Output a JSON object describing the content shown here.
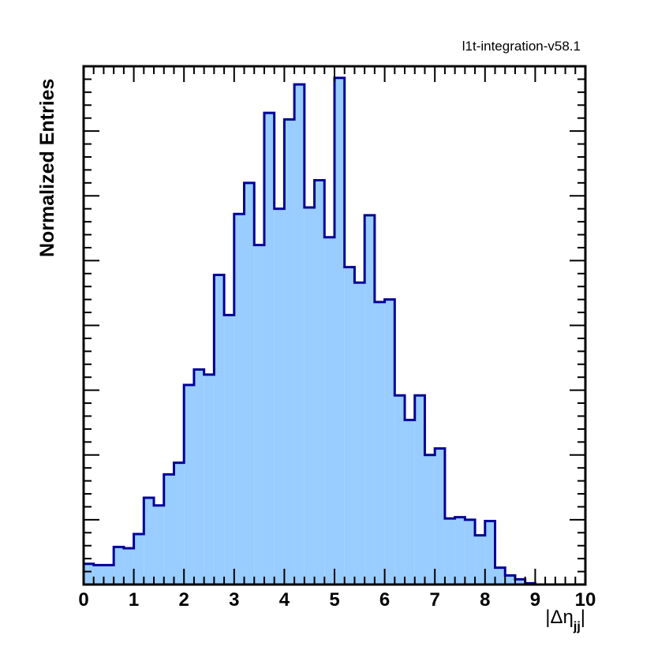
{
  "header": {
    "tag": "l1t-integration-v58.1"
  },
  "chart_data": {
    "type": "histogram",
    "ylabel": "Normalized Entries",
    "xlabel_parts": {
      "prefix": "|Δη",
      "subscript": "jj",
      "suffix": "|"
    },
    "xlim": [
      0,
      10
    ],
    "ylim": [
      0,
      0.4
    ],
    "x_ticks": [
      0,
      1,
      2,
      3,
      4,
      5,
      6,
      7,
      8,
      9,
      10
    ],
    "y_tick_labels_shown": false,
    "bin_width": 0.2,
    "bin_edges_start": 0,
    "values": [
      0.016,
      0.015,
      0.015,
      0.029,
      0.028,
      0.039,
      0.067,
      0.061,
      0.085,
      0.094,
      0.154,
      0.166,
      0.162,
      0.239,
      0.208,
      0.286,
      0.31,
      0.262,
      0.364,
      0.29,
      0.359,
      0.386,
      0.291,
      0.312,
      0.268,
      0.391,
      0.245,
      0.233,
      0.285,
      0.218,
      0.22,
      0.146,
      0.127,
      0.146,
      0.1,
      0.105,
      0.051,
      0.052,
      0.05,
      0.038,
      0.049,
      0.013,
      0.007,
      0.004,
      0.001,
      0.0,
      0.0,
      0.0,
      0.0,
      0.0
    ],
    "fill_color": "#99ccff",
    "line_color": "#000099",
    "grid": false,
    "legend": "none"
  }
}
